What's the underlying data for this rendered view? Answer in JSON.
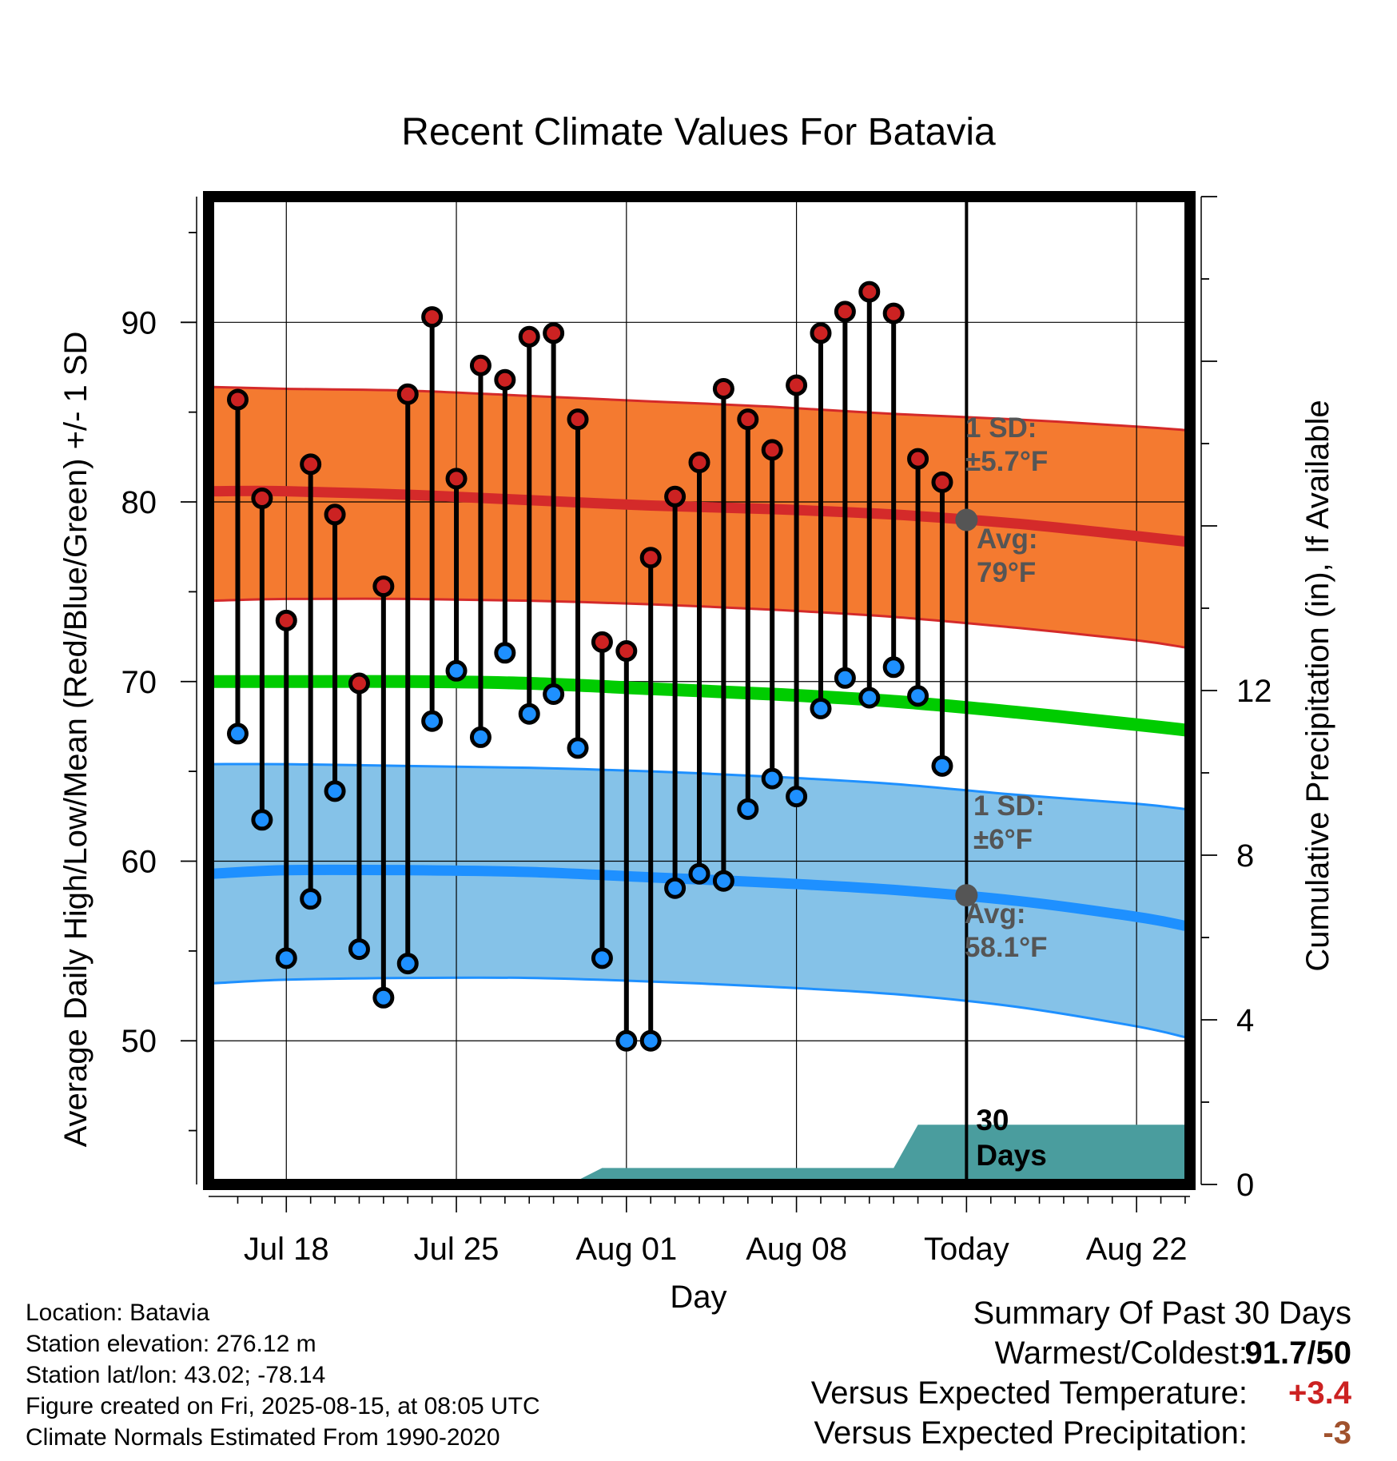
{
  "chart_data": {
    "type": "line",
    "title": "Recent Climate Values For Batavia",
    "xlabel": "Day",
    "ylabel": "Average Daily High/Low/Mean (Red/Blue/Green) +/- 1 SD",
    "y2label": "Cumulative Precipitation (in), If Available",
    "x_ticks": [
      "Jul 18",
      "Jul 25",
      "Aug 01",
      "Aug 08",
      "Today",
      "Aug 22"
    ],
    "x_tick_day_offsets": [
      0,
      7,
      14,
      21,
      28,
      35
    ],
    "xlim_day_offsets": [
      -3.2,
      37.2
    ],
    "ylim": [
      42,
      97
    ],
    "y_ticks": [
      50,
      60,
      70,
      80,
      90
    ],
    "y2lim": [
      0,
      24
    ],
    "y2_ticks": [
      0,
      4,
      8,
      12
    ],
    "today_day_offset": 28,
    "today_label": "30 Days",
    "observations": {
      "day_offsets": [
        -2,
        -1,
        0,
        1,
        2,
        3,
        4,
        5,
        6,
        7,
        8,
        9,
        10,
        11,
        12,
        13,
        14,
        15,
        16,
        17,
        18,
        19,
        20,
        21,
        22,
        23,
        24,
        25,
        26,
        27
      ],
      "high": [
        85.7,
        80.2,
        73.4,
        82.1,
        79.3,
        69.9,
        75.3,
        86.0,
        90.3,
        81.3,
        87.6,
        86.8,
        89.2,
        89.4,
        84.6,
        72.2,
        71.7,
        76.9,
        80.3,
        82.2,
        86.3,
        84.6,
        82.9,
        86.5,
        89.4,
        90.6,
        91.7,
        90.5,
        82.4,
        81.1
      ],
      "low": [
        67.1,
        62.3,
        54.6,
        57.9,
        63.9,
        55.1,
        52.4,
        54.3,
        67.8,
        70.6,
        66.9,
        71.6,
        68.2,
        69.3,
        66.3,
        54.6,
        50.0,
        50.0,
        58.5,
        59.3,
        58.9,
        62.9,
        64.6,
        63.6,
        68.5,
        70.2,
        69.1,
        70.8,
        69.2,
        65.3
      ]
    },
    "normals": {
      "day_offsets": [
        -3,
        0,
        5,
        10,
        15,
        20,
        25,
        30,
        35,
        37
      ],
      "avg_high": [
        80.6,
        80.6,
        80.4,
        80.1,
        79.8,
        79.6,
        79.3,
        78.8,
        78.1,
        77.8
      ],
      "high_sd_upper": [
        86.4,
        86.3,
        86.2,
        85.9,
        85.6,
        85.3,
        84.9,
        84.6,
        84.2,
        84.0
      ],
      "high_sd_lower": [
        74.5,
        74.6,
        74.6,
        74.5,
        74.3,
        74.0,
        73.6,
        73.0,
        72.3,
        71.9
      ],
      "avg_mean": [
        70.0,
        70.0,
        70.0,
        69.9,
        69.6,
        69.3,
        68.9,
        68.3,
        67.6,
        67.3
      ],
      "avg_low": [
        59.3,
        59.5,
        59.5,
        59.4,
        59.1,
        58.8,
        58.4,
        57.8,
        56.9,
        56.4
      ],
      "low_sd_upper": [
        65.4,
        65.4,
        65.3,
        65.2,
        65.0,
        64.7,
        64.3,
        63.7,
        63.2,
        62.9
      ],
      "low_sd_lower": [
        53.2,
        53.4,
        53.5,
        53.5,
        53.3,
        53.0,
        52.6,
        51.9,
        50.8,
        50.2
      ]
    },
    "precipitation": {
      "day_offsets": [
        6,
        9,
        12,
        13,
        14,
        25,
        26,
        37
      ],
      "cumulative_in": [
        0.0,
        0.05,
        0.1,
        0.4,
        0.4,
        0.4,
        1.45,
        1.45
      ]
    },
    "annotations": {
      "high_sd": {
        "line1": "1 SD:",
        "line2": "±5.7°F"
      },
      "high_avg": {
        "line1": "Avg:",
        "line2": "79°F",
        "value": 79.0
      },
      "low_sd": {
        "line1": "1 SD:",
        "line2": "±6°F"
      },
      "low_avg": {
        "line1": "Avg:",
        "line2": "58.1°F",
        "value": 58.1
      }
    },
    "colors": {
      "high_band": "#f47a30",
      "high_line": "#d42a2a",
      "low_band": "#85c2e8",
      "low_line": "#1e90ff",
      "mean_line": "#00cc00",
      "precip": "#4a9d9e",
      "high_marker": "#cc2222",
      "low_marker": "#1e90ff",
      "annotation": "#555555"
    }
  },
  "footer": {
    "location": "Location: Batavia",
    "elevation": "Station elevation: 276.12 m",
    "latlon": "Station lat/lon: 43.02; -78.14",
    "created": "Figure created on Fri, 2025-08-15, at 08:05 UTC",
    "normals": "Climate Normals Estimated From 1990-2020"
  },
  "summary": {
    "title": "Summary Of Past 30 Days",
    "warmest_label": "Warmest/Coldest:",
    "warmest_value": "91.7/50",
    "temp_label": "Versus Expected Temperature:",
    "temp_value": "+3.4",
    "temp_color": "#cc2222",
    "precip_label": "Versus Expected Precipitation:",
    "precip_value": "-3",
    "precip_color": "#a0522d"
  }
}
